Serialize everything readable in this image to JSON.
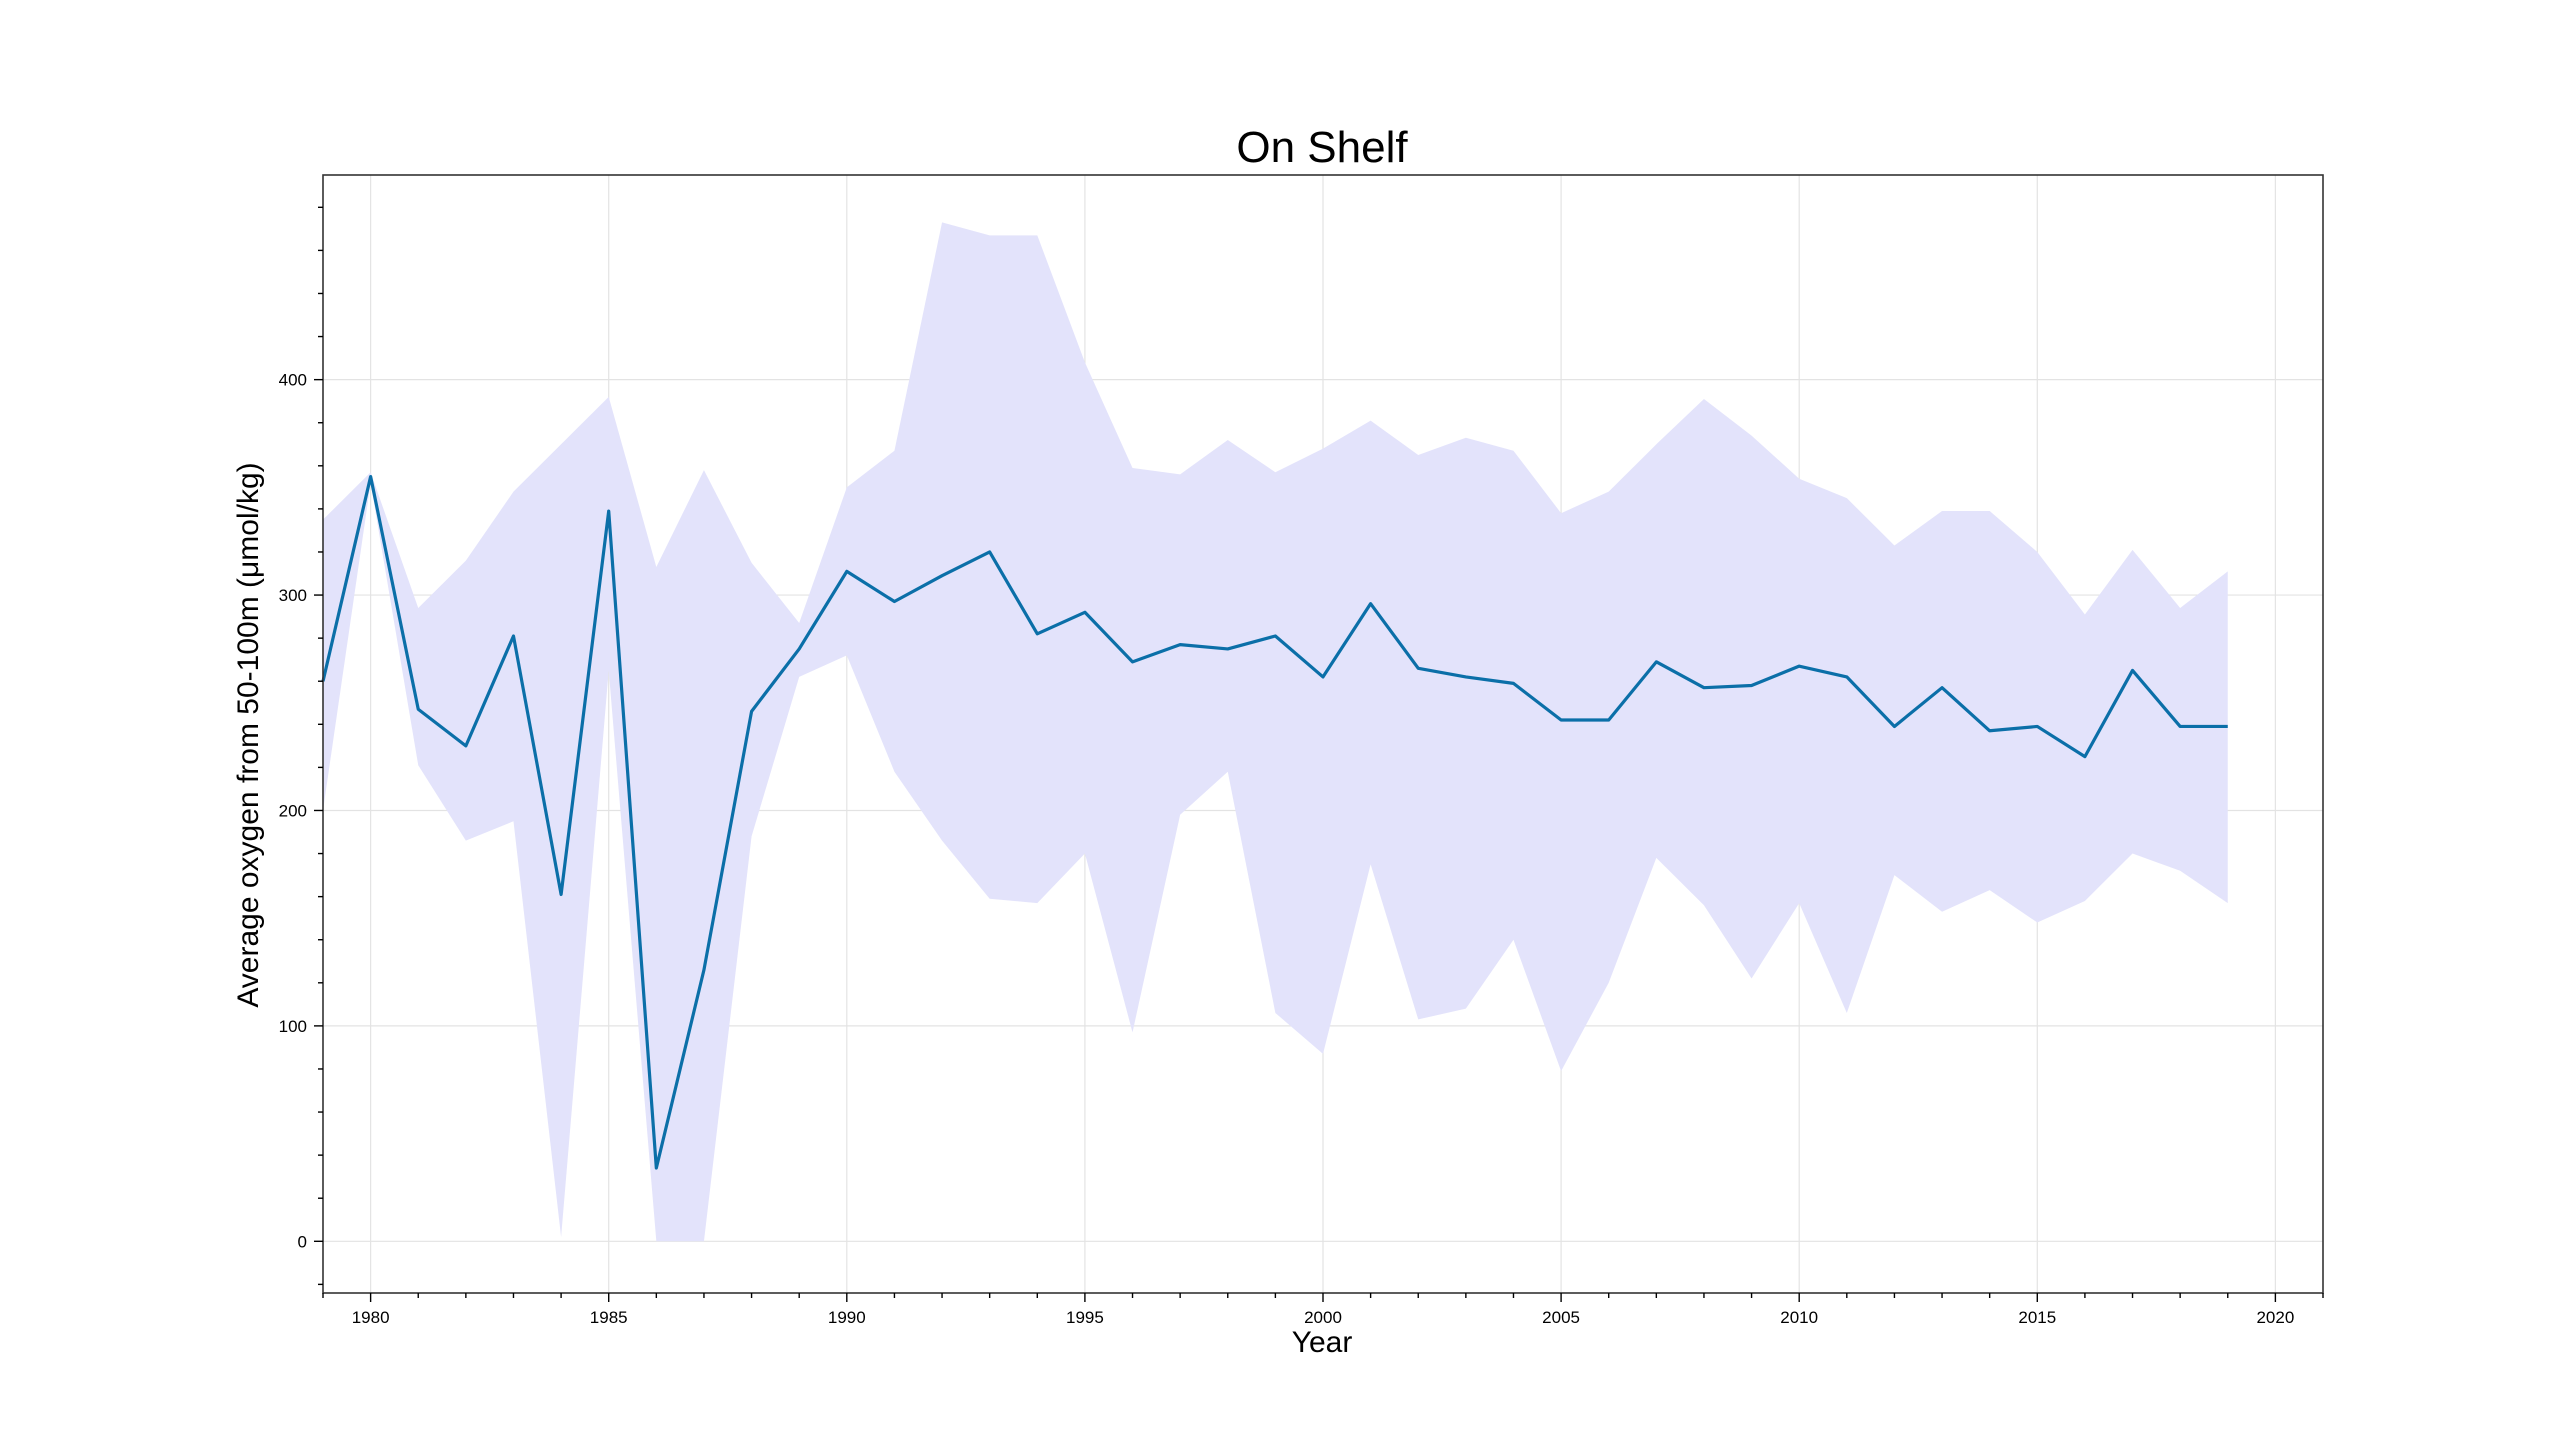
{
  "chart_data": {
    "type": "line",
    "title": "On Shelf",
    "xlabel": "Year",
    "ylabel": "Average oxygen from 50-100m (μmol/kg)",
    "xlim": [
      1979,
      2021
    ],
    "ylim": [
      -24,
      495
    ],
    "x_ticks": [
      1980,
      1985,
      1990,
      1995,
      2000,
      2005,
      2010,
      2015,
      2020
    ],
    "y_ticks": [
      0,
      100,
      200,
      300,
      400
    ],
    "grid": true,
    "legend": "none",
    "colors": {
      "line": "#0b6fa8",
      "band": "#e3e3fb",
      "grid": "#e3e3e3",
      "frame": "#333333"
    },
    "x": [
      1979,
      1980,
      1981,
      1982,
      1983,
      1984,
      1985,
      1986,
      1987,
      1988,
      1989,
      1990,
      1991,
      1992,
      1993,
      1994,
      1995,
      1996,
      1997,
      1998,
      1999,
      2000,
      2001,
      2002,
      2003,
      2004,
      2005,
      2006,
      2007,
      2008,
      2009,
      2010,
      2011,
      2012,
      2013,
      2014,
      2015,
      2016,
      2017,
      2018,
      2019
    ],
    "series": [
      {
        "values": [
          260,
          355,
          247,
          230,
          281,
          161,
          339,
          34,
          126,
          246,
          275,
          311,
          297,
          309,
          320,
          282,
          292,
          269,
          277,
          275,
          281,
          262,
          296,
          266,
          262,
          259,
          242,
          242,
          269,
          257,
          258,
          267,
          262,
          239,
          257,
          237,
          239,
          225,
          265,
          239,
          239
        ]
      }
    ],
    "band": {
      "lower": [
        200,
        352,
        221,
        186,
        195,
        2,
        265,
        0,
        0,
        188,
        262,
        272,
        218,
        186,
        159,
        157,
        180,
        97,
        198,
        218,
        106,
        87,
        175,
        103,
        108,
        140,
        79,
        120,
        178,
        156,
        122,
        157,
        106,
        170,
        153,
        163,
        148,
        158,
        180,
        172,
        157
      ],
      "upper": [
        335,
        357,
        294,
        316,
        348,
        370,
        392,
        313,
        358,
        315,
        287,
        350,
        367,
        473,
        467,
        467,
        408,
        359,
        356,
        372,
        357,
        368,
        381,
        365,
        373,
        367,
        338,
        348,
        370,
        391,
        374,
        354,
        345,
        323,
        339,
        339,
        320,
        291,
        321,
        294,
        311
      ]
    }
  }
}
